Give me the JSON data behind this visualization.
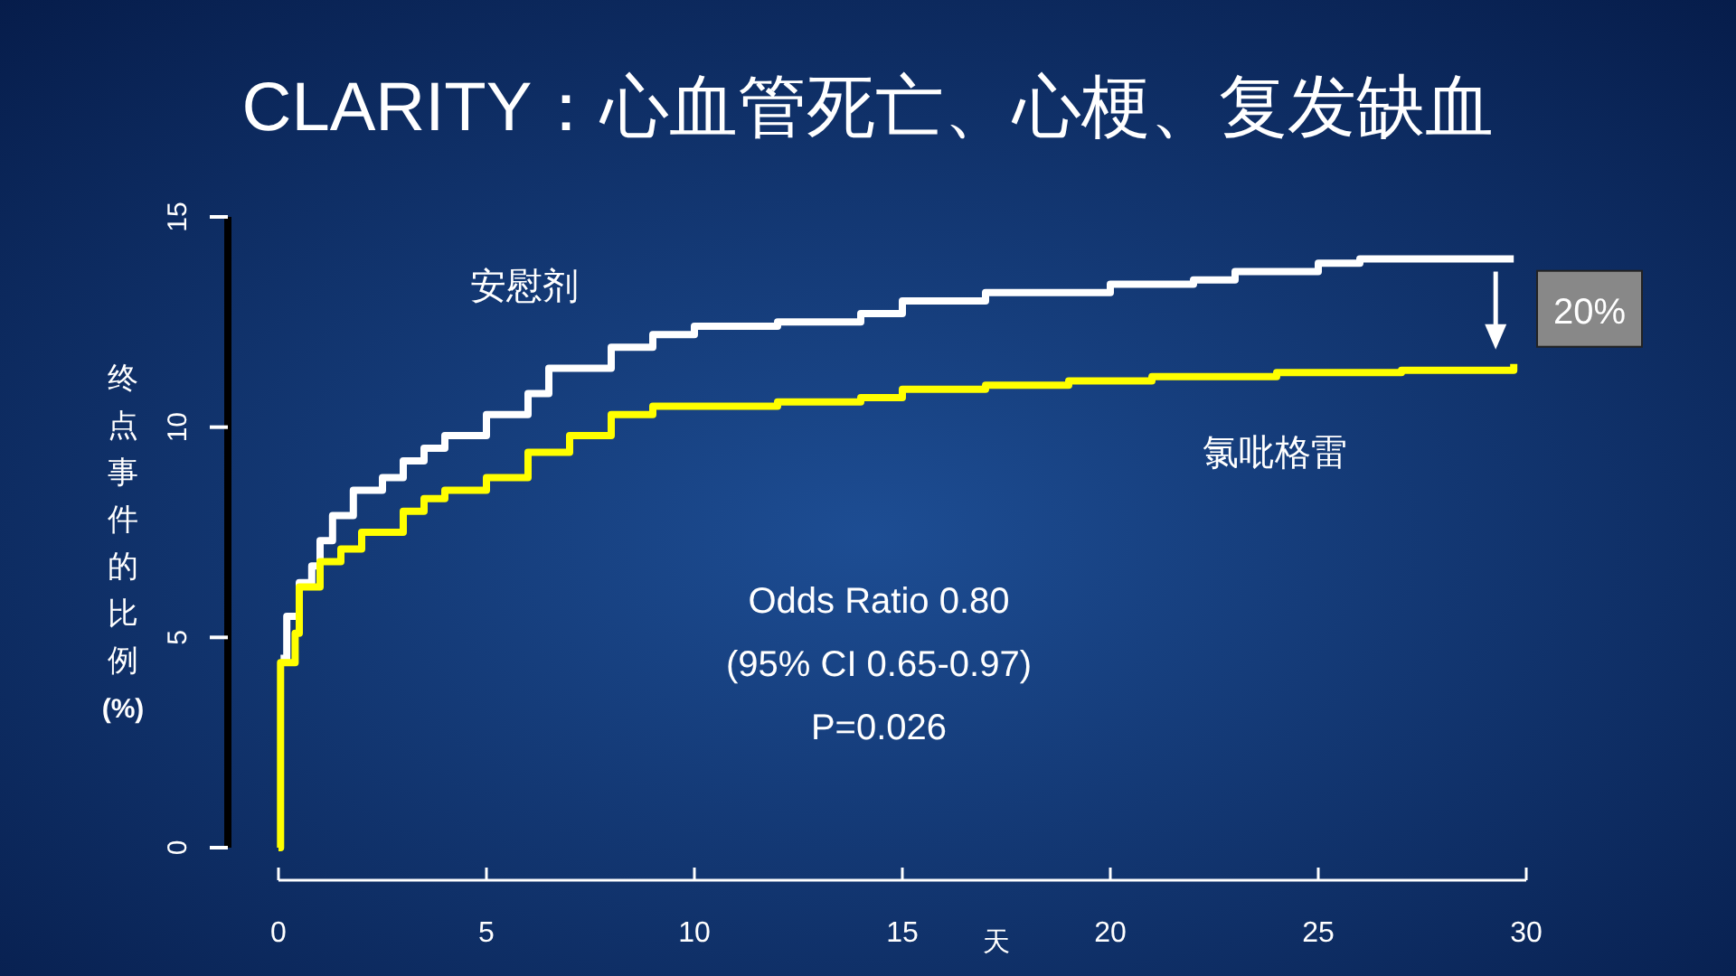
{
  "chart_data": {
    "type": "step",
    "title": "CLARITY：心血管死亡、心梗、复发缺血",
    "xlabel": "天",
    "ylabel": "终点事件的比例 (%)",
    "xlim": [
      0,
      30
    ],
    "xticks": [
      0,
      5,
      10,
      15,
      20,
      25,
      30
    ],
    "ylim": [
      0,
      15
    ],
    "yticks": [
      0,
      5,
      10,
      15
    ],
    "grid": false,
    "series": [
      {
        "name": "安慰剂",
        "color": "#ffffff",
        "x": [
          0.05,
          0.2,
          0.5,
          0.8,
          1,
          1.3,
          1.8,
          2.5,
          3,
          3.5,
          4,
          5,
          6,
          6.5,
          8,
          9,
          10,
          12,
          14,
          15,
          17,
          20,
          22,
          23,
          25,
          26,
          29.7
        ],
        "values": [
          4.5,
          5.5,
          6.3,
          6.7,
          7.3,
          7.9,
          8.5,
          8.8,
          9.2,
          9.5,
          9.8,
          10.3,
          10.8,
          11.4,
          11.9,
          12.2,
          12.4,
          12.5,
          12.7,
          13,
          13.2,
          13.4,
          13.5,
          13.7,
          13.9,
          14,
          14
        ]
      },
      {
        "name": "氯吡格雷",
        "color": "#ffff00",
        "x": [
          0,
          0.05,
          0.4,
          0.5,
          1,
          1.5,
          2,
          3,
          3.5,
          4,
          5,
          6,
          7,
          8,
          9,
          12,
          14,
          15,
          17,
          19,
          21,
          24,
          27,
          29.7
        ],
        "values": [
          0,
          4.4,
          5.1,
          6.2,
          6.8,
          7.1,
          7.5,
          8,
          8.3,
          8.5,
          8.8,
          9.4,
          9.8,
          10.3,
          10.5,
          10.6,
          10.7,
          10.9,
          11,
          11.1,
          11.2,
          11.3,
          11.35,
          11.5
        ]
      }
    ],
    "annotations": [
      {
        "text": "Odds Ratio 0.80"
      },
      {
        "text": "(95% CI 0.65-0.97)"
      },
      {
        "text": "P=0.026"
      },
      "20%"
    ]
  }
}
